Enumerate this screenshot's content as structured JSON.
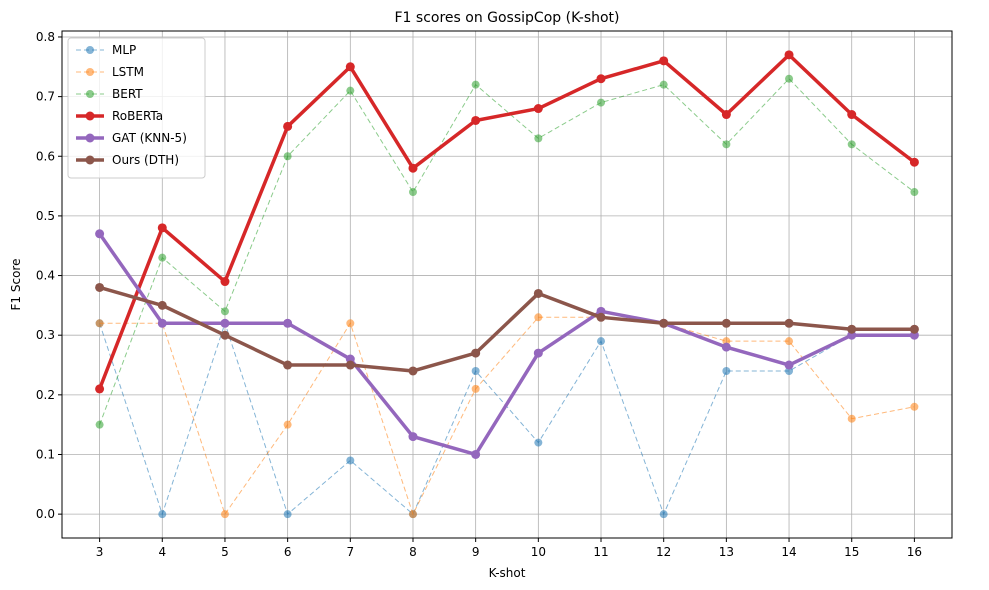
{
  "chart_data": {
    "type": "line",
    "title": "F1 scores on GossipCop (K-shot)",
    "xlabel": "K-shot",
    "ylabel": "F1 Score",
    "x": [
      3,
      4,
      5,
      6,
      7,
      8,
      9,
      10,
      11,
      12,
      13,
      14,
      15,
      16
    ],
    "xlim": [
      2.4,
      16.6
    ],
    "ylim": [
      -0.04,
      0.81
    ],
    "yticks": [
      0.0,
      0.1,
      0.2,
      0.3,
      0.4,
      0.5,
      0.6,
      0.7,
      0.8
    ],
    "ytick_labels": [
      "0.0",
      "0.1",
      "0.2",
      "0.3",
      "0.4",
      "0.5",
      "0.6",
      "0.7",
      "0.8"
    ],
    "grid": true,
    "legend_position": "top-left",
    "series": [
      {
        "name": "MLP",
        "color": "#1f77b4",
        "style": "dashed",
        "emphasis": false,
        "values": [
          0.32,
          0.0,
          0.32,
          0.0,
          0.09,
          0.0,
          0.24,
          0.12,
          0.29,
          0.0,
          0.24,
          0.24,
          0.3,
          0.3
        ]
      },
      {
        "name": "LSTM",
        "color": "#ff7f0e",
        "style": "dashed",
        "emphasis": false,
        "values": [
          0.32,
          0.32,
          0.0,
          0.15,
          0.32,
          0.0,
          0.21,
          0.33,
          0.33,
          0.32,
          0.29,
          0.29,
          0.16,
          0.18
        ]
      },
      {
        "name": "BERT",
        "color": "#2ca02c",
        "style": "dashed",
        "emphasis": false,
        "values": [
          0.15,
          0.43,
          0.34,
          0.6,
          0.71,
          0.54,
          0.72,
          0.63,
          0.69,
          0.72,
          0.62,
          0.73,
          0.62,
          0.54
        ]
      },
      {
        "name": "RoBERTa",
        "color": "#d62728",
        "style": "solid",
        "emphasis": true,
        "values": [
          0.21,
          0.48,
          0.39,
          0.65,
          0.75,
          0.58,
          0.66,
          0.68,
          0.73,
          0.76,
          0.67,
          0.77,
          0.67,
          0.59
        ]
      },
      {
        "name": "GAT (KNN-5)",
        "color": "#9467bd",
        "style": "solid",
        "emphasis": true,
        "values": [
          0.47,
          0.32,
          0.32,
          0.32,
          0.26,
          0.13,
          0.1,
          0.27,
          0.34,
          0.32,
          0.28,
          0.25,
          0.3,
          0.3
        ]
      },
      {
        "name": "Ours (DTH)",
        "color": "#8c564b",
        "style": "solid",
        "emphasis": true,
        "values": [
          0.38,
          0.35,
          0.3,
          0.25,
          0.25,
          0.24,
          0.27,
          0.37,
          0.33,
          0.32,
          0.32,
          0.32,
          0.31,
          0.31
        ]
      }
    ]
  }
}
